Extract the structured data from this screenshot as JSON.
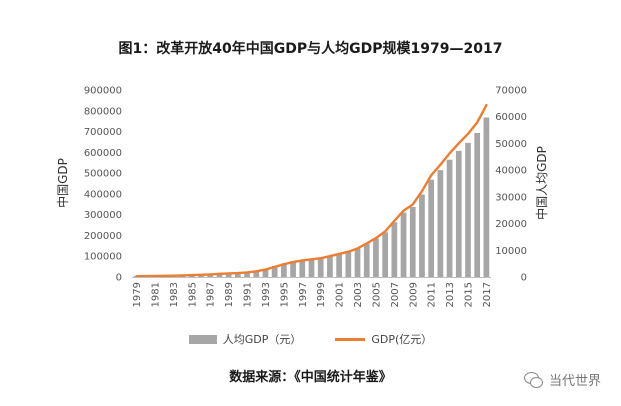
{
  "chart_data": {
    "type": "bar",
    "title": "图1：改革开放40年中国GDP与人均GDP规模1979—2017",
    "ylabel_left": "中国GDP",
    "ylabel_right": "中国人均GDP",
    "xlabel": "",
    "ylim_left": [
      0,
      900000
    ],
    "ylim_right": [
      0,
      70000
    ],
    "yticks_left": [
      "900000",
      "800000",
      "700000",
      "600000",
      "500000",
      "400000",
      "300000",
      "200000",
      "100000",
      "0"
    ],
    "yticks_right": [
      "70000",
      "60000",
      "50000",
      "40000",
      "30000",
      "20000",
      "10000",
      "0"
    ],
    "categories": [
      "1979",
      "1980",
      "1981",
      "1982",
      "1983",
      "1984",
      "1985",
      "1986",
      "1987",
      "1988",
      "1989",
      "1990",
      "1991",
      "1992",
      "1993",
      "1994",
      "1995",
      "1996",
      "1997",
      "1998",
      "1999",
      "2000",
      "2001",
      "2002",
      "2003",
      "2004",
      "2005",
      "2006",
      "2007",
      "2008",
      "2009",
      "2010",
      "2011",
      "2012",
      "2013",
      "2014",
      "2015",
      "2016",
      "2017"
    ],
    "category_tick_labels": [
      "1979",
      "1981",
      "1983",
      "1985",
      "1987",
      "1989",
      "1991",
      "1993",
      "1995",
      "1997",
      "1999",
      "2001",
      "2003",
      "2005",
      "2007",
      "2009",
      "2011",
      "2013",
      "2015",
      "2017"
    ],
    "legend_position": "bottom",
    "grid": false,
    "series": [
      {
        "name": "人均GDP（元）",
        "type": "bar",
        "axis": "left",
        "color": "#a6a6a6",
        "values": [
          400,
          470,
          500,
          540,
          600,
          700,
          870,
          970,
          1120,
          1370,
          1520,
          1660,
          1910,
          2330,
          3030,
          4080,
          5090,
          5900,
          6480,
          6800,
          7160,
          7900,
          8670,
          9500,
          10700,
          12500,
          14400,
          16700,
          20500,
          24100,
          26200,
          30900,
          36400,
          40000,
          43900,
          47200,
          50200,
          53900,
          59700
        ]
      },
      {
        "name": "GDP(亿元）",
        "type": "line",
        "axis": "left",
        "color": "#ed7d31",
        "values": [
          4100,
          4600,
          4900,
          5400,
          6000,
          7300,
          9100,
          10400,
          12200,
          15200,
          17200,
          18900,
          22000,
          27200,
          35700,
          48600,
          61300,
          71800,
          79700,
          85200,
          90600,
          100300,
          110900,
          121700,
          137400,
          161800,
          187300,
          219400,
          270100,
          319200,
          349100,
          413000,
          489300,
          540400,
          595200,
          643600,
          689100,
          743600,
          827100
        ]
      }
    ]
  },
  "footer": {
    "source": "数据来源：《中国统计年鉴》",
    "watermark": "当代世界"
  }
}
